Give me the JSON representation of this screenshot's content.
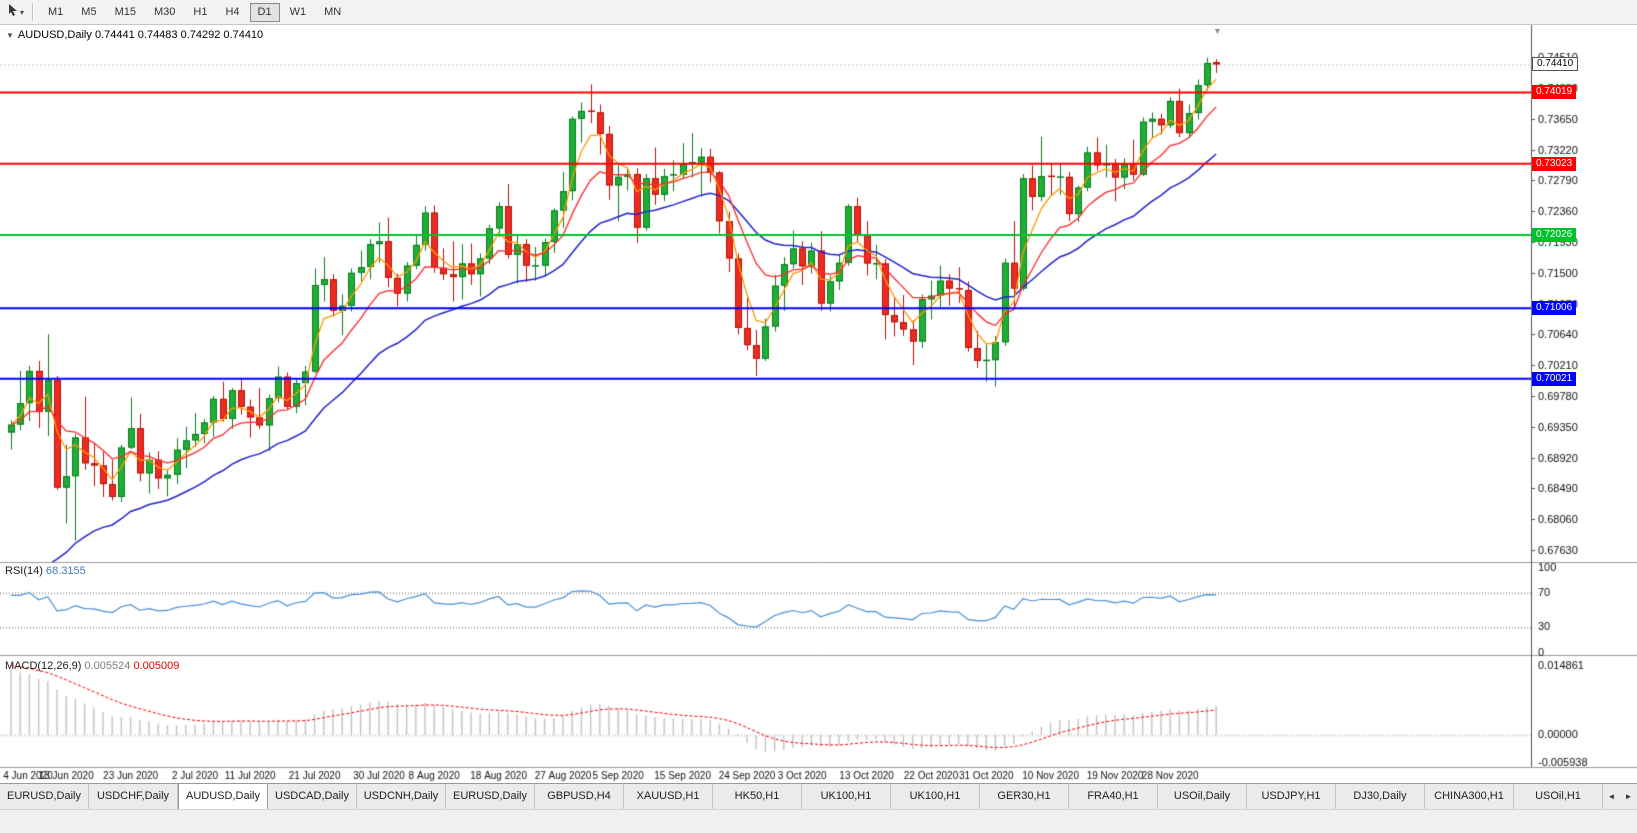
{
  "toolbar": {
    "timeframes": [
      "M1",
      "M5",
      "M15",
      "M30",
      "H1",
      "H4",
      "D1",
      "W1",
      "MN"
    ],
    "active_timeframe": "D1"
  },
  "chart": {
    "symbol_period": "AUDUSD,Daily",
    "ohlc": "0.74441 0.74483 0.74292 0.74410"
  },
  "icons": {
    "dropdown_caret": "▾",
    "title_arrow": "▼",
    "shift_marker": "▼",
    "scroll_left": "◄",
    "scroll_right": "►"
  },
  "current_price": {
    "label": "0.74410",
    "value": 0.7441
  },
  "levels": [
    {
      "label": "0.74019",
      "value": 0.74019,
      "color": "#fe0000"
    },
    {
      "label": "0.73023",
      "value": 0.73023,
      "color": "#fe0000"
    },
    {
      "label": "0.72026",
      "value": 0.72026,
      "color": "#00c22a"
    },
    {
      "label": "0.71006",
      "value": 0.71006,
      "color": "#0000fe"
    },
    {
      "label": "0.70021",
      "value": 0.70021,
      "color": "#0000fe"
    }
  ],
  "price_axis": {
    "ticks": [
      "0.74510",
      "0.74080",
      "0.73650",
      "0.73220",
      "0.72790",
      "0.72360",
      "0.71930",
      "0.71500",
      "0.71070",
      "0.70640",
      "0.70210",
      "0.69780",
      "0.69350",
      "0.68920",
      "0.68490",
      "0.68060",
      "0.67630"
    ]
  },
  "rsi": {
    "name": "RSI(14)",
    "value": "68.3155",
    "period": 14,
    "axis_labels": [
      "100",
      "70",
      "30",
      "0"
    ],
    "levels": [
      70,
      30
    ]
  },
  "macd": {
    "name": "MACD(12,26,9)",
    "value_main": "0.005524",
    "value_signal": "0.005009",
    "params": [
      12,
      26,
      9
    ],
    "axis_top": "0.014861",
    "axis_zero": "0.00000",
    "axis_bottom": "-0.005938"
  },
  "date_axis": {
    "labels": [
      "4 Jun 2020",
      "13 Jun 2020",
      "23 Jun 2020",
      "2 Jul 2020",
      "11 Jul 2020",
      "21 Jul 2020",
      "30 Jul 2020",
      "8 Aug 2020",
      "18 Aug 2020",
      "27 Aug 2020",
      "5 Sep 2020",
      "15 Sep 2020",
      "24 Sep 2020",
      "3 Oct 2020",
      "13 Oct 2020",
      "22 Oct 2020",
      "31 Oct 2020",
      "10 Nov 2020",
      "19 Nov 2020",
      "28 Nov 2020"
    ],
    "indices": [
      0,
      6,
      13,
      20,
      26,
      33,
      40,
      46,
      53,
      60,
      66,
      73,
      80,
      86,
      93,
      100,
      106,
      113,
      120,
      126
    ]
  },
  "tabs": {
    "items": [
      "EURUSD,Daily",
      "USDCHF,Daily",
      "AUDUSD,Daily",
      "USDCAD,Daily",
      "USDCNH,Daily",
      "EURUSD,Daily",
      "GBPUSD,H4",
      "XAUUSD,H1",
      "HK50,H1",
      "UK100,H1",
      "UK100,H1",
      "GER30,H1",
      "FRA40,H1",
      "USOil,Daily",
      "USDJPY,H1",
      "DJ30,Daily",
      "CHINA300,H1",
      "USOil,H1"
    ],
    "active_index": 2
  },
  "colors": {
    "up": "#1fae36",
    "up_border": "#0c7c20",
    "down": "#ec2c20",
    "down_border": "#b5140b",
    "ma_fast": "#ff9900",
    "ma_mid": "#fe2a2a",
    "ma_slow": "#2323cc",
    "rsi_line": "#4a90d9",
    "rsi_level": "#a8a8a8",
    "macd_hist": "#c2c2c2",
    "macd_signal": "#fe0000",
    "bid_line": "#c9c9c9",
    "axis_line": "#555555",
    "separator": "#9a9a9a"
  },
  "chart_data": {
    "type": "candlestick",
    "symbol": "AUDUSD",
    "period": "Daily",
    "last_open": 0.74441,
    "last_high": 0.74483,
    "last_low": 0.74292,
    "last_close": 0.7441,
    "price_range": [
      0.6749,
      0.7489
    ],
    "candles": [
      [
        0.6927,
        0.6944,
        0.6903,
        0.6938
      ],
      [
        0.6938,
        0.7013,
        0.693,
        0.6968
      ],
      [
        0.6968,
        0.702,
        0.6943,
        0.7013
      ],
      [
        0.7013,
        0.7027,
        0.6933,
        0.6956
      ],
      [
        0.6956,
        0.7064,
        0.6922,
        0.7
      ],
      [
        0.7,
        0.7006,
        0.6847,
        0.685
      ],
      [
        0.685,
        0.691,
        0.68,
        0.6866
      ],
      [
        0.6866,
        0.6925,
        0.6776,
        0.692
      ],
      [
        0.692,
        0.6977,
        0.6875,
        0.6884
      ],
      [
        0.6884,
        0.6911,
        0.6852,
        0.6881
      ],
      [
        0.6881,
        0.69,
        0.6837,
        0.6855
      ],
      [
        0.6855,
        0.6889,
        0.6832,
        0.6837
      ],
      [
        0.6837,
        0.691,
        0.683,
        0.6906
      ],
      [
        0.6906,
        0.6976,
        0.6904,
        0.6933
      ],
      [
        0.6933,
        0.6953,
        0.6859,
        0.687
      ],
      [
        0.687,
        0.6899,
        0.6842,
        0.6889
      ],
      [
        0.6889,
        0.6901,
        0.6848,
        0.6863
      ],
      [
        0.6863,
        0.6876,
        0.6838,
        0.6868
      ],
      [
        0.6868,
        0.6919,
        0.6855,
        0.6903
      ],
      [
        0.6903,
        0.6935,
        0.6877,
        0.6916
      ],
      [
        0.6916,
        0.6954,
        0.6907,
        0.6925
      ],
      [
        0.6925,
        0.6946,
        0.6912,
        0.6941
      ],
      [
        0.6941,
        0.6978,
        0.6921,
        0.6974
      ],
      [
        0.6974,
        0.6998,
        0.6942,
        0.6946
      ],
      [
        0.6946,
        0.6989,
        0.6932,
        0.6986
      ],
      [
        0.6986,
        0.7001,
        0.6952,
        0.6963
      ],
      [
        0.6963,
        0.6973,
        0.692,
        0.6948
      ],
      [
        0.6948,
        0.6989,
        0.6932,
        0.6937
      ],
      [
        0.6937,
        0.698,
        0.6901,
        0.6975
      ],
      [
        0.6975,
        0.7019,
        0.6969,
        0.7005
      ],
      [
        0.7005,
        0.7011,
        0.6959,
        0.6963
      ],
      [
        0.6963,
        0.7001,
        0.6954,
        0.6996
      ],
      [
        0.6996,
        0.702,
        0.6965,
        0.7012
      ],
      [
        0.7012,
        0.7156,
        0.701,
        0.7133
      ],
      [
        0.7133,
        0.7172,
        0.711,
        0.7141
      ],
      [
        0.7141,
        0.7148,
        0.7089,
        0.7097
      ],
      [
        0.7097,
        0.712,
        0.7063,
        0.7104
      ],
      [
        0.7104,
        0.7156,
        0.7096,
        0.715
      ],
      [
        0.715,
        0.7181,
        0.7138,
        0.7158
      ],
      [
        0.7158,
        0.7197,
        0.7141,
        0.719
      ],
      [
        0.719,
        0.722,
        0.7164,
        0.7194
      ],
      [
        0.7194,
        0.7227,
        0.713,
        0.7143
      ],
      [
        0.7143,
        0.7149,
        0.7103,
        0.7121
      ],
      [
        0.7121,
        0.7165,
        0.711,
        0.716
      ],
      [
        0.716,
        0.7202,
        0.7155,
        0.7189
      ],
      [
        0.7189,
        0.7243,
        0.7181,
        0.7234
      ],
      [
        0.7234,
        0.7244,
        0.715,
        0.7157
      ],
      [
        0.7157,
        0.7184,
        0.714,
        0.7148
      ],
      [
        0.7148,
        0.7194,
        0.711,
        0.7144
      ],
      [
        0.7144,
        0.719,
        0.7113,
        0.7163
      ],
      [
        0.7163,
        0.7191,
        0.7133,
        0.7148
      ],
      [
        0.7148,
        0.7177,
        0.7117,
        0.717
      ],
      [
        0.717,
        0.7217,
        0.7162,
        0.7212
      ],
      [
        0.7212,
        0.7248,
        0.72,
        0.7243
      ],
      [
        0.7243,
        0.7274,
        0.717,
        0.7175
      ],
      [
        0.7175,
        0.7204,
        0.7135,
        0.719
      ],
      [
        0.719,
        0.7197,
        0.7137,
        0.716
      ],
      [
        0.716,
        0.7186,
        0.7139,
        0.716
      ],
      [
        0.716,
        0.7198,
        0.7145,
        0.7193
      ],
      [
        0.7193,
        0.724,
        0.7178,
        0.7237
      ],
      [
        0.7237,
        0.7291,
        0.7213,
        0.7264
      ],
      [
        0.7264,
        0.7368,
        0.7251,
        0.7365
      ],
      [
        0.7365,
        0.7388,
        0.7332,
        0.7376
      ],
      [
        0.7376,
        0.7413,
        0.7359,
        0.7374
      ],
      [
        0.7374,
        0.7385,
        0.7315,
        0.7344
      ],
      [
        0.7344,
        0.7355,
        0.7252,
        0.7272
      ],
      [
        0.7272,
        0.73,
        0.7222,
        0.7284
      ],
      [
        0.7284,
        0.7296,
        0.7265,
        0.7288
      ],
      [
        0.7288,
        0.7296,
        0.7192,
        0.7213
      ],
      [
        0.7213,
        0.7288,
        0.7209,
        0.7282
      ],
      [
        0.7282,
        0.7325,
        0.7245,
        0.7259
      ],
      [
        0.7259,
        0.7295,
        0.725,
        0.7285
      ],
      [
        0.7285,
        0.7307,
        0.7264,
        0.7287
      ],
      [
        0.7287,
        0.7331,
        0.7282,
        0.7302
      ],
      [
        0.7302,
        0.7345,
        0.7283,
        0.7304
      ],
      [
        0.7304,
        0.7324,
        0.7256,
        0.7312
      ],
      [
        0.7312,
        0.7323,
        0.7276,
        0.729
      ],
      [
        0.729,
        0.7292,
        0.7205,
        0.7222
      ],
      [
        0.7222,
        0.7235,
        0.7151,
        0.717
      ],
      [
        0.717,
        0.7177,
        0.7064,
        0.7073
      ],
      [
        0.7073,
        0.7116,
        0.7042,
        0.7049
      ],
      [
        0.7049,
        0.707,
        0.7006,
        0.703
      ],
      [
        0.703,
        0.7086,
        0.7027,
        0.7075
      ],
      [
        0.7075,
        0.7147,
        0.7068,
        0.7132
      ],
      [
        0.7132,
        0.7172,
        0.7097,
        0.7162
      ],
      [
        0.7162,
        0.7209,
        0.7156,
        0.7184
      ],
      [
        0.7184,
        0.7194,
        0.7133,
        0.7159
      ],
      [
        0.7159,
        0.7192,
        0.7149,
        0.7181
      ],
      [
        0.7181,
        0.7208,
        0.7097,
        0.7107
      ],
      [
        0.7107,
        0.7146,
        0.7096,
        0.7138
      ],
      [
        0.7138,
        0.7175,
        0.7126,
        0.7164
      ],
      [
        0.7164,
        0.7246,
        0.716,
        0.7243
      ],
      [
        0.7243,
        0.7255,
        0.7192,
        0.7203
      ],
      [
        0.7203,
        0.7222,
        0.7146,
        0.7163
      ],
      [
        0.7163,
        0.7189,
        0.7141,
        0.7163
      ],
      [
        0.7163,
        0.7169,
        0.7057,
        0.7091
      ],
      [
        0.7091,
        0.7115,
        0.7061,
        0.7081
      ],
      [
        0.7081,
        0.7119,
        0.7062,
        0.7071
      ],
      [
        0.7071,
        0.7084,
        0.7021,
        0.7054
      ],
      [
        0.7054,
        0.712,
        0.7045,
        0.7113
      ],
      [
        0.7113,
        0.7139,
        0.7085,
        0.7118
      ],
      [
        0.7118,
        0.716,
        0.7102,
        0.7139
      ],
      [
        0.7139,
        0.7148,
        0.7104,
        0.7128
      ],
      [
        0.7128,
        0.7158,
        0.7108,
        0.7126
      ],
      [
        0.7126,
        0.7138,
        0.704,
        0.7045
      ],
      [
        0.7045,
        0.7069,
        0.7017,
        0.7027
      ],
      [
        0.7027,
        0.705,
        0.6998,
        0.7028
      ],
      [
        0.7028,
        0.7062,
        0.6991,
        0.7053
      ],
      [
        0.7053,
        0.717,
        0.7048,
        0.7164
      ],
      [
        0.7164,
        0.7222,
        0.71,
        0.7128
      ],
      [
        0.7128,
        0.7288,
        0.7125,
        0.7282
      ],
      [
        0.7282,
        0.73,
        0.7237,
        0.7256
      ],
      [
        0.7256,
        0.734,
        0.725,
        0.7285
      ],
      [
        0.7285,
        0.7302,
        0.7258,
        0.7283
      ],
      [
        0.7283,
        0.7303,
        0.7259,
        0.7284
      ],
      [
        0.7284,
        0.7291,
        0.7222,
        0.7232
      ],
      [
        0.7232,
        0.7272,
        0.7221,
        0.7269
      ],
      [
        0.7269,
        0.7326,
        0.7264,
        0.7318
      ],
      [
        0.7318,
        0.7339,
        0.7293,
        0.73
      ],
      [
        0.73,
        0.7329,
        0.7283,
        0.7303
      ],
      [
        0.7303,
        0.7309,
        0.725,
        0.7283
      ],
      [
        0.7283,
        0.731,
        0.7267,
        0.7303
      ],
      [
        0.7303,
        0.7336,
        0.7279,
        0.7287
      ],
      [
        0.7287,
        0.7367,
        0.7285,
        0.7361
      ],
      [
        0.7361,
        0.7374,
        0.7339,
        0.7365
      ],
      [
        0.7365,
        0.7372,
        0.7343,
        0.7356
      ],
      [
        0.7356,
        0.7395,
        0.7352,
        0.739
      ],
      [
        0.739,
        0.7407,
        0.7339,
        0.7345
      ],
      [
        0.7345,
        0.7385,
        0.7338,
        0.7373
      ],
      [
        0.7373,
        0.742,
        0.7364,
        0.7412
      ],
      [
        0.7412,
        0.74505,
        0.7405,
        0.7443
      ],
      [
        0.74441,
        0.74483,
        0.74292,
        0.7441
      ]
    ]
  }
}
